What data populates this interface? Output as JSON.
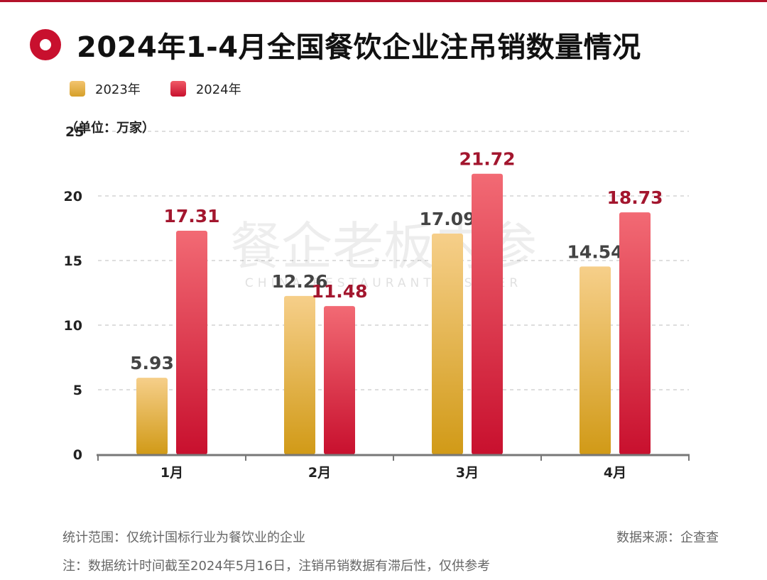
{
  "header": {
    "title": "2024年1-4月全国餐饮企业注吊销数量情况"
  },
  "legend": {
    "items": [
      "2023年",
      "2024年"
    ]
  },
  "unit_label": "（单位：万家）",
  "watermark": {
    "text_cn": "餐企老板内参",
    "text_en": "CHINA RESTAURANT INSIDER"
  },
  "footer": {
    "scope": "统计范围：仅统计国标行业为餐饮业的企业",
    "source": "数据来源：企查查",
    "note": "注：数据统计时间截至2024年5月16日，注销吊销数据有滞后性，仅供参考"
  },
  "colors": {
    "accent": "#c8102e",
    "series_2023_top": "#f6cf8a",
    "series_2023_bottom": "#d19a17",
    "series_2024_top": "#f26a74",
    "series_2024_bottom": "#c8102e",
    "label_2023": "#444444",
    "label_2024": "#a3162e"
  },
  "chart_data": {
    "type": "bar",
    "categories": [
      "1月",
      "2月",
      "3月",
      "4月"
    ],
    "series": [
      {
        "name": "2023年",
        "values": [
          5.93,
          12.26,
          17.09,
          14.54
        ]
      },
      {
        "name": "2024年",
        "values": [
          17.31,
          11.48,
          21.72,
          18.73
        ]
      }
    ],
    "data_labels": [
      [
        "5.93",
        "12.26",
        "17.09",
        "14.54"
      ],
      [
        "17.31",
        "11.48",
        "21.72",
        "18.73"
      ]
    ],
    "yticks": [
      "0",
      "5",
      "10",
      "15",
      "20",
      "25"
    ],
    "ylim": [
      0,
      25
    ],
    "ylabel": "（单位：万家）",
    "grid": true,
    "legend_position": "top-left"
  }
}
